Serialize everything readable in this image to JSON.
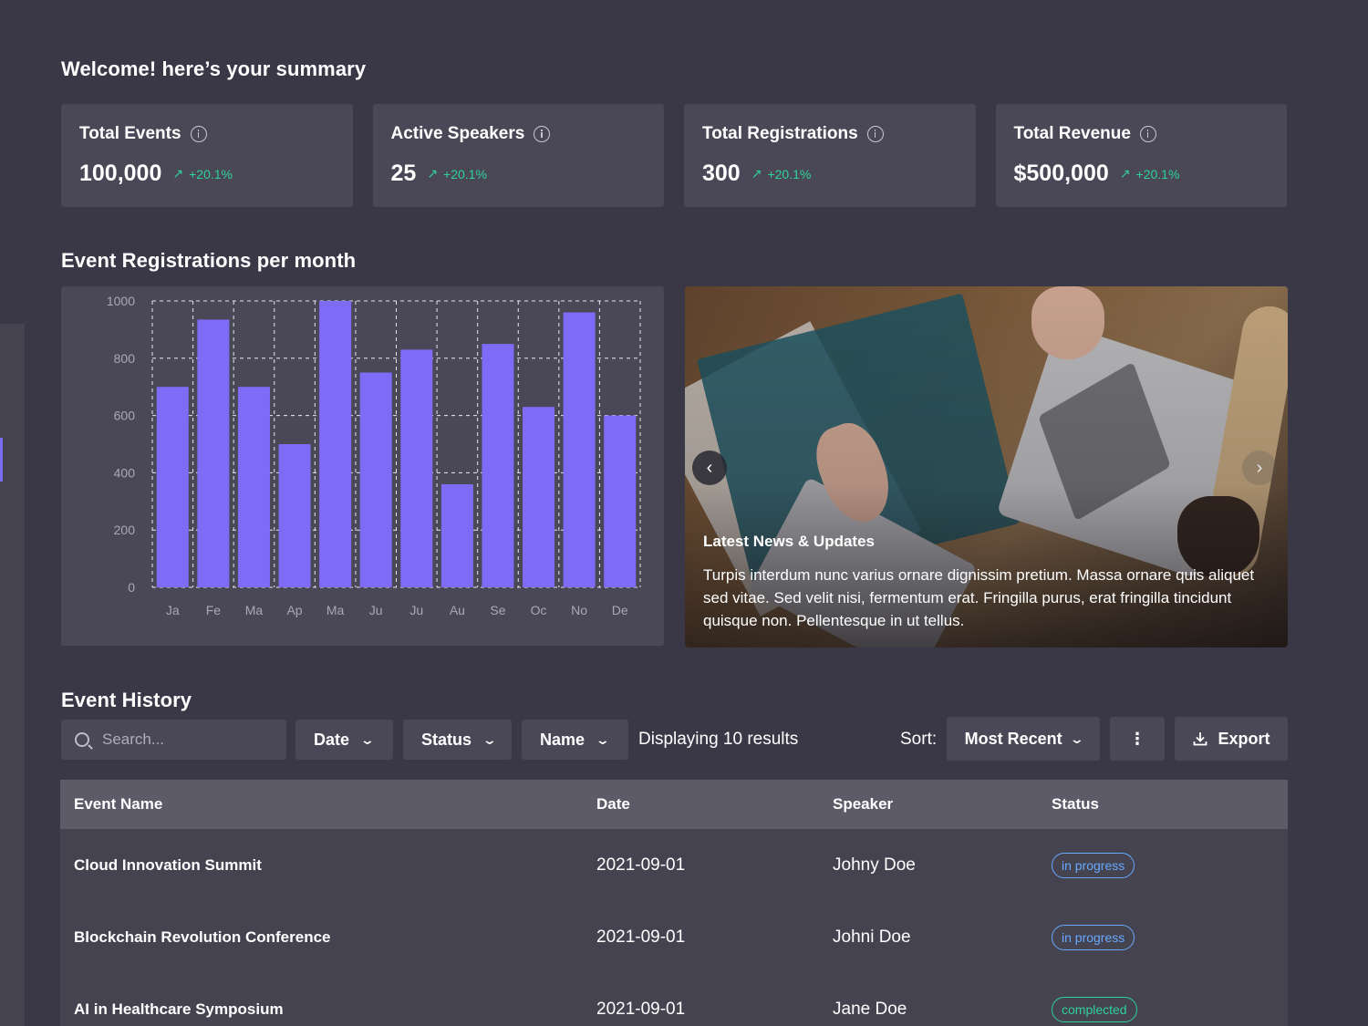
{
  "welcome": "Welcome! here’s your summary",
  "stats": [
    {
      "label": "Total Events",
      "value": "100,000",
      "trend": "+20.1%"
    },
    {
      "label": "Active Speakers",
      "value": "25",
      "trend": "+20.1%"
    },
    {
      "label": "Total Registrations",
      "value": "300",
      "trend": "+20.1%"
    },
    {
      "label": "Total Revenue",
      "value": "$500,000",
      "trend": "+20.1%"
    }
  ],
  "chart_section_title": "Event Registrations per month",
  "chart_data": {
    "type": "bar",
    "categories": [
      "Ja",
      "Fe",
      "Ma",
      "Ap",
      "Ma",
      "Ju",
      "Ju",
      "Au",
      "Se",
      "Oc",
      "No",
      "De"
    ],
    "values": [
      700,
      935,
      700,
      500,
      1000,
      750,
      830,
      360,
      850,
      630,
      960,
      600
    ],
    "yticks": [
      0,
      200,
      400,
      600,
      800,
      1000
    ],
    "ylim": [
      0,
      1000
    ],
    "grid": true,
    "bar_color": "#7e6cf7"
  },
  "news": {
    "title": "Latest News & Updates",
    "body": "Turpis interdum nunc varius ornare dignissim pretium. Massa ornare quis aliquet sed vitae. Sed velit nisi, fermentum erat. Fringilla purus, erat fringilla tincidunt quisque non. Pellentesque in ut tellus.",
    "prev_icon": "‹",
    "next_icon": "›"
  },
  "history": {
    "title": "Event History",
    "search_placeholder": "Search...",
    "filters": {
      "date": "Date",
      "status": "Status",
      "name": "Name"
    },
    "results_text": "Displaying 10 results",
    "sort_label": "Sort:",
    "sort_value": "Most Recent",
    "more_icon": "⋮",
    "export_label": "Export",
    "columns": [
      "Event Name",
      "Date",
      "Speaker",
      "Status"
    ],
    "rows": [
      {
        "name": "Cloud Innovation Summit",
        "date": "2021-09-01",
        "speaker": "Johny Doe",
        "status": "in progress"
      },
      {
        "name": "Blockchain Revolution Conference",
        "date": "2021-09-01",
        "speaker": "Johni Doe",
        "status": "in progress"
      },
      {
        "name": "AI in Healthcare Symposium",
        "date": "2021-09-01",
        "speaker": "Jane Doe",
        "status": "complected"
      }
    ]
  },
  "colors": {
    "accent": "#7e6cf7",
    "positive": "#2fd29a",
    "in_progress": "#67a9ff"
  }
}
